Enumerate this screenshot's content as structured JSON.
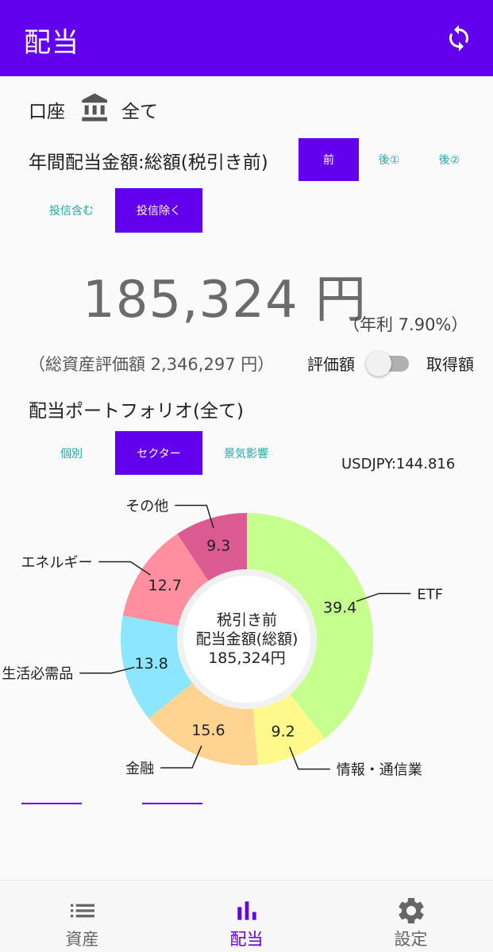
{
  "colors": {
    "primary": "#6200ee",
    "teal": "#26a6a6"
  },
  "appbar": {
    "title": "配当",
    "refresh_icon": "refresh-icon"
  },
  "account": {
    "label": "口座",
    "icon": "bank-icon",
    "value": "全て"
  },
  "annual": {
    "title": "年間配当金額:総額(税引き前)",
    "tax_buttons": [
      "前",
      "後①",
      "後②"
    ],
    "tax_selected": "前",
    "fund_buttons": [
      "投信含む",
      "投信除く"
    ],
    "fund_selected": "投信除く"
  },
  "amount": {
    "value": "185,324 円",
    "yield": "（年利 7.90%）",
    "total": "（総資産評価額 2,346,297 円）"
  },
  "toggle": {
    "left_label": "評価額",
    "right_label": "取得額",
    "on": false
  },
  "portfolio": {
    "title": "配当ポートフォリオ(全て)",
    "view_buttons": [
      "個別",
      "セクター",
      "景気影響"
    ],
    "view_selected": "セクター",
    "fx": "USDJPY:144.816"
  },
  "chart_data": {
    "type": "pie",
    "categories": [
      "ETF",
      "情報・通信業",
      "金融",
      "生活必需品",
      "エネルギー",
      "その他"
    ],
    "values": [
      39.4,
      9.2,
      15.6,
      13.8,
      12.7,
      9.3
    ],
    "colors": [
      "#c5ff8e",
      "#fff98c",
      "#ffd391",
      "#8de6ff",
      "#ff8f9e",
      "#db5a92"
    ],
    "center_text": [
      "税引き前",
      "配当金額(総額)",
      "185,324円"
    ]
  },
  "bottom_nav": [
    {
      "label": "資産",
      "icon": "list-icon"
    },
    {
      "label": "配当",
      "icon": "bar-chart-icon"
    },
    {
      "label": "設定",
      "icon": "gear-icon"
    }
  ],
  "bottom_nav_active": "配当"
}
